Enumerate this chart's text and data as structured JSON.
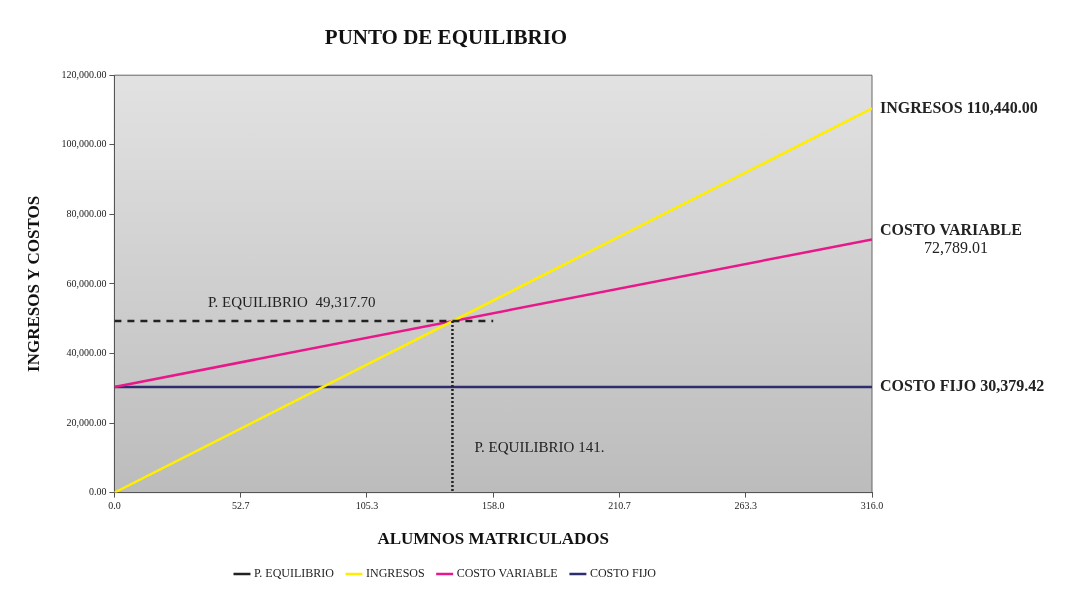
{
  "chart_data": {
    "type": "line",
    "title": "PUNTO DE EQUILIBRIO",
    "xlabel": "ALUMNOS MATRICULADOS",
    "ylabel": "INGRESOS Y COSTOS",
    "xlim": [
      0,
      316
    ],
    "xticks": [
      {
        "value": 0,
        "label": "0.0"
      },
      {
        "value": 52.667,
        "label": "52.7"
      },
      {
        "value": 105.333,
        "label": "105.3"
      },
      {
        "value": 158,
        "label": "158.0"
      },
      {
        "value": 210.667,
        "label": "210.7"
      },
      {
        "value": 263.333,
        "label": "263.3"
      },
      {
        "value": 316,
        "label": "316.0"
      }
    ],
    "ylim": [
      0,
      120000
    ],
    "yticks": [
      {
        "value": 0,
        "label": "0.00"
      },
      {
        "value": 20000,
        "label": "20,000.00"
      },
      {
        "value": 40000,
        "label": "40,000.00"
      },
      {
        "value": 60000,
        "label": "60,000.00"
      },
      {
        "value": 80000,
        "label": "80,000.00"
      },
      {
        "value": 100000,
        "label": "100,000.00"
      },
      {
        "value": 120000,
        "label": "120,000.00"
      }
    ],
    "grid": false,
    "legend": "bottom",
    "marker": "none",
    "series": [
      {
        "name": "COSTO FIJO",
        "color": "#2e2e6e",
        "x": [
          0,
          316
        ],
        "values": [
          30379.42,
          30379.42
        ]
      },
      {
        "name": "COSTO VARIABLE",
        "color": "#e8178a",
        "x": [
          0,
          316
        ],
        "values": [
          30379.42,
          72789.01
        ]
      },
      {
        "name": "INGRESOS",
        "color": "#ffee00",
        "x": [
          0,
          316
        ],
        "values": [
          0,
          110440
        ]
      },
      {
        "name": "P. EQUILIBRIO",
        "color": "#222222",
        "x": [
          0,
          158
        ],
        "values": [
          49317.7,
          49317.7
        ],
        "line_style": "dashed"
      },
      {
        "color": "#222222",
        "x": [
          141,
          141
        ],
        "values": [
          49317.7,
          0
        ],
        "line_style": "dotted"
      }
    ],
    "annotations": [
      {
        "text": "INGRESOS 110,440.00",
        "x": 316,
        "y": 110440
      },
      {
        "text": "COSTO VARIABLE 72,789.01",
        "x": 316,
        "y": 72789.01
      },
      {
        "text": "COSTO FIJO 30,379.42",
        "x": 316,
        "y": 30379.42
      },
      {
        "text": "P. EQUILIBRIO  49,317.70",
        "x": 39,
        "y": 49317.7
      },
      {
        "text": "P. EQUILIBRIO 141.",
        "x": 141,
        "y": 0
      }
    ]
  }
}
